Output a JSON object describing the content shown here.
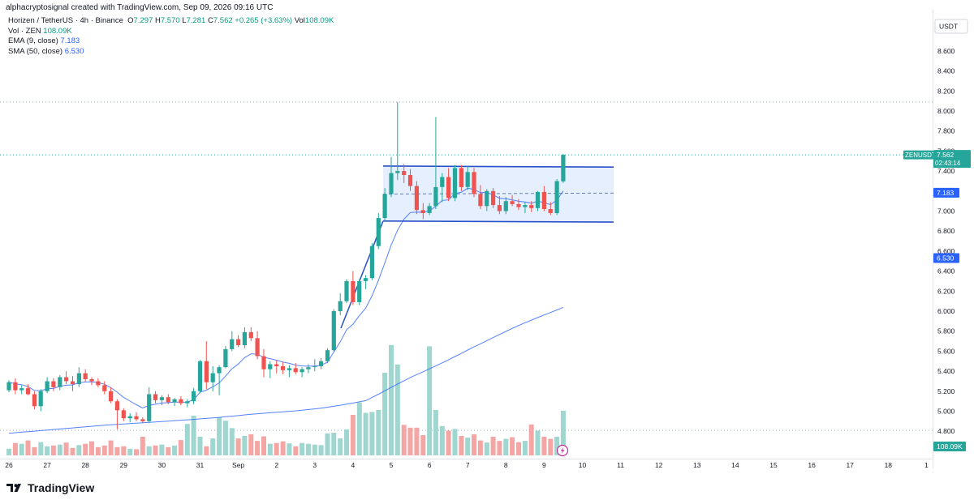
{
  "credit": "alphacryptosignal created with TradingView.com, Sep 09, 2026 09:16 UTC",
  "legend": {
    "title": "Horizen / TetherUS · 4h · Binance",
    "ohlc": [
      {
        "k": "O",
        "v": "7.297"
      },
      {
        "k": "H",
        "v": "7.570"
      },
      {
        "k": "L",
        "v": "7.281"
      },
      {
        "k": "C",
        "v": "7.562"
      }
    ],
    "change": "+0.265 (+3.63%)",
    "vol_label": "Vol",
    "vol_value": "108.09K",
    "volume_label": "Vol · ZEN",
    "volume_value": "108.09K",
    "ema_label": "EMA (9, close)",
    "ema_value": "7.183",
    "sma_label": "SMA (50, close)",
    "sma_value": "6.530"
  },
  "price_scale": {
    "currency": "USDT",
    "ticks": [
      "8.600",
      "8.400",
      "8.200",
      "8.000",
      "7.800",
      "7.600",
      "7.400",
      "7.200",
      "7.000",
      "6.800",
      "6.600",
      "6.400",
      "6.200",
      "6.000",
      "5.800",
      "5.600",
      "5.400",
      "5.200",
      "5.000",
      "4.800"
    ],
    "symbol_tag": "ZENUSDT",
    "last_price": "7.562",
    "countdown": "02:43:14",
    "ema_tag": "7.183",
    "sma_tag": "6.530",
    "volume_tag": "108.09K"
  },
  "time_scale": [
    "26",
    "27",
    "28",
    "29",
    "30",
    "31",
    "Sep",
    "2",
    "3",
    "4",
    "5",
    "6",
    "7",
    "8",
    "9",
    "10",
    "11",
    "12",
    "13",
    "14",
    "15",
    "16",
    "17",
    "18",
    "1"
  ],
  "branding": "TradingView",
  "colors": {
    "up": "#26a69a",
    "down": "#ef5350",
    "vol_up": "#9fd6d0",
    "vol_down": "#f4a6a4",
    "ma": "#2962ff",
    "channel_fill": "#e6effd"
  },
  "chart_data": {
    "type": "candlestick",
    "title": "Horizen / TetherUS · 4h · Binance",
    "symbol": "ZENUSDT",
    "interval": "4h",
    "y_unit": "USDT",
    "ylim": [
      4.75,
      8.9
    ],
    "x_axis": {
      "labels": [
        "26",
        "27",
        "28",
        "29",
        "30",
        "31",
        "Sep",
        "2",
        "3",
        "4",
        "5",
        "6",
        "7",
        "8",
        "9",
        "10",
        "11",
        "12",
        "13",
        "14",
        "15",
        "16",
        "17",
        "18",
        "1"
      ],
      "label_bar_index": [
        0,
        6,
        12,
        18,
        24,
        30,
        36,
        42,
        48,
        54,
        60,
        66,
        72,
        78,
        84,
        90,
        96,
        102,
        108,
        114,
        120,
        126,
        132,
        138,
        144
      ],
      "bars_per_day": 6
    },
    "candles": [
      [
        5.21,
        5.31,
        5.19,
        5.29
      ],
      [
        5.29,
        5.33,
        5.17,
        5.21
      ],
      [
        5.21,
        5.26,
        5.17,
        5.23
      ],
      [
        5.23,
        5.27,
        5.16,
        5.17
      ],
      [
        5.17,
        5.2,
        5.02,
        5.05
      ],
      [
        5.05,
        5.22,
        5.0,
        5.2
      ],
      [
        5.2,
        5.34,
        5.18,
        5.3
      ],
      [
        5.3,
        5.33,
        5.2,
        5.24
      ],
      [
        5.24,
        5.36,
        5.21,
        5.34
      ],
      [
        5.34,
        5.4,
        5.27,
        5.3
      ],
      [
        5.3,
        5.35,
        5.2,
        5.27
      ],
      [
        5.27,
        5.44,
        5.24,
        5.38
      ],
      [
        5.38,
        5.42,
        5.29,
        5.32
      ],
      [
        5.32,
        5.34,
        5.26,
        5.3
      ],
      [
        5.3,
        5.33,
        5.24,
        5.26
      ],
      [
        5.26,
        5.3,
        5.17,
        5.2
      ],
      [
        5.2,
        5.24,
        5.08,
        5.1
      ],
      [
        5.1,
        5.12,
        4.82,
        5.01
      ],
      [
        5.01,
        5.03,
        4.9,
        4.93
      ],
      [
        4.93,
        4.98,
        4.89,
        4.95
      ],
      [
        4.95,
        4.99,
        4.9,
        4.92
      ],
      [
        4.92,
        4.94,
        4.88,
        4.9
      ],
      [
        4.9,
        5.24,
        4.88,
        5.17
      ],
      [
        5.17,
        5.2,
        5.08,
        5.11
      ],
      [
        5.11,
        5.16,
        5.06,
        5.14
      ],
      [
        5.14,
        5.17,
        5.07,
        5.09
      ],
      [
        5.09,
        5.13,
        5.05,
        5.12
      ],
      [
        5.12,
        5.15,
        5.06,
        5.08
      ],
      [
        5.08,
        5.12,
        5.04,
        5.1
      ],
      [
        5.1,
        5.23,
        5.07,
        5.2
      ],
      [
        5.2,
        5.51,
        5.18,
        5.5
      ],
      [
        5.5,
        5.7,
        5.22,
        5.29
      ],
      [
        5.29,
        5.45,
        5.2,
        5.38
      ],
      [
        5.38,
        5.46,
        5.16,
        5.44
      ],
      [
        5.44,
        5.65,
        5.43,
        5.62
      ],
      [
        5.62,
        5.8,
        5.6,
        5.72
      ],
      [
        5.72,
        5.76,
        5.64,
        5.66
      ],
      [
        5.66,
        5.84,
        5.63,
        5.79
      ],
      [
        5.79,
        5.84,
        5.7,
        5.73
      ],
      [
        5.73,
        5.8,
        5.52,
        5.55
      ],
      [
        5.55,
        5.62,
        5.34,
        5.42
      ],
      [
        5.42,
        5.5,
        5.33,
        5.47
      ],
      [
        5.47,
        5.51,
        5.38,
        5.45
      ],
      [
        5.45,
        5.49,
        5.37,
        5.41
      ],
      [
        5.41,
        5.46,
        5.34,
        5.43
      ],
      [
        5.43,
        5.48,
        5.37,
        5.39
      ],
      [
        5.39,
        5.44,
        5.34,
        5.42
      ],
      [
        5.42,
        5.47,
        5.38,
        5.44
      ],
      [
        5.44,
        5.52,
        5.4,
        5.45
      ],
      [
        5.45,
        5.53,
        5.42,
        5.5
      ],
      [
        5.5,
        5.63,
        5.48,
        5.61
      ],
      [
        5.61,
        6.02,
        5.6,
        6.0
      ],
      [
        6.0,
        6.18,
        5.96,
        6.1
      ],
      [
        6.1,
        6.32,
        6.08,
        6.3
      ],
      [
        6.3,
        6.4,
        6.06,
        6.09
      ],
      [
        6.09,
        6.32,
        6.06,
        6.3
      ],
      [
        6.3,
        6.36,
        6.22,
        6.33
      ],
      [
        6.33,
        6.68,
        6.31,
        6.65
      ],
      [
        6.65,
        6.98,
        6.62,
        6.93
      ],
      [
        6.93,
        7.23,
        6.9,
        7.17
      ],
      [
        7.17,
        7.54,
        7.14,
        7.38
      ],
      [
        7.38,
        8.09,
        7.31,
        7.4
      ],
      [
        7.4,
        7.47,
        7.28,
        7.36
      ],
      [
        7.36,
        7.42,
        7.2,
        7.25
      ],
      [
        7.25,
        7.3,
        6.97,
        7.01
      ],
      [
        7.01,
        7.08,
        6.92,
        6.98
      ],
      [
        6.98,
        7.08,
        6.96,
        7.05
      ],
      [
        7.05,
        7.94,
        7.02,
        7.24
      ],
      [
        7.24,
        7.38,
        7.09,
        7.34
      ],
      [
        7.34,
        7.43,
        7.1,
        7.13
      ],
      [
        7.13,
        7.46,
        7.1,
        7.43
      ],
      [
        7.43,
        7.46,
        7.2,
        7.24
      ],
      [
        7.24,
        7.45,
        7.21,
        7.39
      ],
      [
        7.39,
        7.43,
        7.14,
        7.17
      ],
      [
        7.17,
        7.26,
        7.02,
        7.05
      ],
      [
        7.05,
        7.22,
        7.0,
        7.2
      ],
      [
        7.2,
        7.23,
        7.03,
        7.06
      ],
      [
        7.06,
        7.15,
        6.97,
        7.0
      ],
      [
        7.0,
        7.14,
        6.97,
        7.1
      ],
      [
        7.1,
        7.16,
        7.05,
        7.07
      ],
      [
        7.07,
        7.12,
        7.01,
        7.04
      ],
      [
        7.04,
        7.09,
        6.98,
        7.06
      ],
      [
        7.06,
        7.1,
        6.99,
        7.03
      ],
      [
        7.03,
        7.2,
        7.0,
        7.19
      ],
      [
        7.19,
        7.25,
        7.0,
        7.02
      ],
      [
        7.02,
        7.09,
        6.96,
        6.98
      ],
      [
        6.98,
        7.32,
        6.96,
        7.3
      ],
      [
        7.297,
        7.57,
        7.281,
        7.562
      ]
    ],
    "volume_k": [
      16,
      30,
      28,
      36,
      20,
      32,
      22,
      24,
      26,
      31,
      18,
      25,
      28,
      34,
      20,
      24,
      36,
      20,
      22,
      16,
      15,
      45,
      22,
      24,
      26,
      20,
      24,
      37,
      76,
      96,
      45,
      22,
      41,
      92,
      84,
      66,
      41,
      47,
      51,
      35,
      46,
      28,
      30,
      34,
      29,
      22,
      30,
      28,
      26,
      25,
      53,
      55,
      41,
      63,
      98,
      128,
      103,
      105,
      110,
      200,
      267,
      220,
      74,
      67,
      67,
      49,
      264,
      110,
      71,
      60,
      64,
      47,
      43,
      51,
      36,
      31,
      45,
      35,
      40,
      44,
      32,
      35,
      75,
      60,
      45,
      40,
      45,
      108
    ]
  }
}
